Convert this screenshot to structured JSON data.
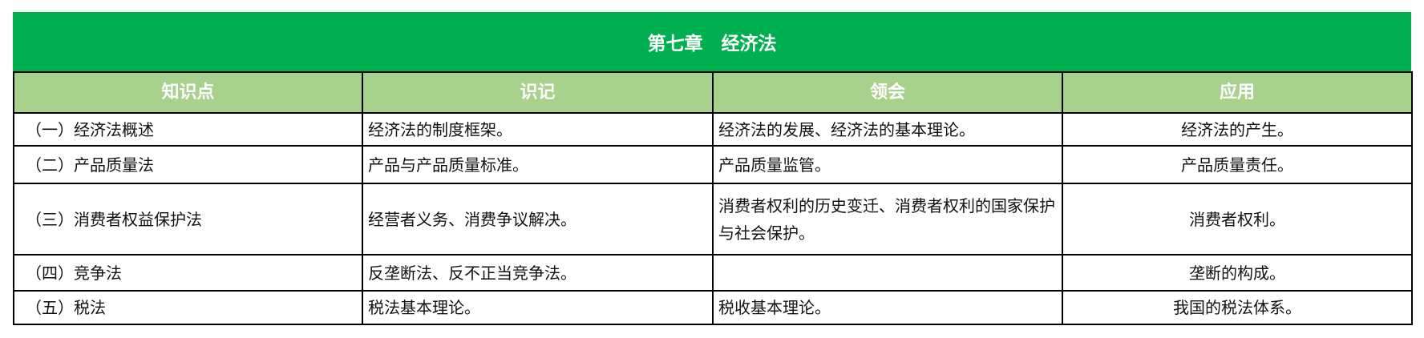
{
  "title": "第七章　经济法",
  "headers": [
    "知识点",
    "识记",
    "领会",
    "应用"
  ],
  "rows": [
    [
      "（一）经济法概述",
      "经济法的制度框架。",
      "经济法的发展、经济法的基本理论。",
      "经济法的产生。"
    ],
    [
      "（二）产品质量法",
      "产品与产品质量标准。",
      "产品质量监管。",
      "产品质量责任。"
    ],
    [
      "（三）消费者权益保护法",
      "经营者义务、消费争议解决。",
      "消费者权利的历史变迁、消费者权利的国家保护与社会保护。",
      "消费者权利。"
    ],
    [
      "（四）竞争法",
      "反垄断法、反不正当竞争法。",
      "",
      "垄断的构成。"
    ],
    [
      "（五）税法",
      "税法基本理论。",
      "税收基本理论。",
      "我国的税法体系。"
    ]
  ],
  "colors": {
    "title_bg": "#00b050",
    "header_bg": "#a9d18e"
  }
}
